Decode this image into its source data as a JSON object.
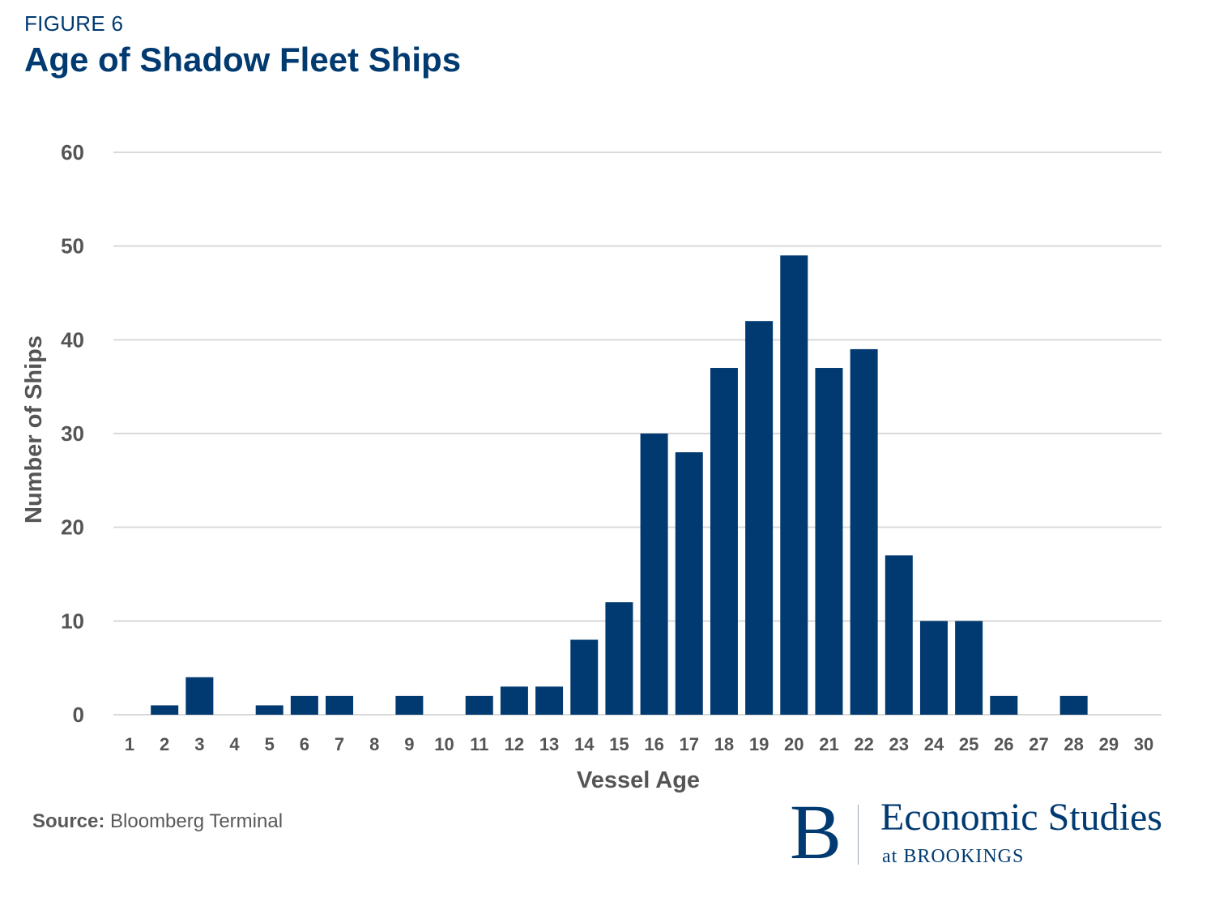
{
  "header": {
    "figure_label": "FIGURE 6",
    "title": "Age of Shadow Fleet Ships"
  },
  "chart_data": {
    "type": "bar",
    "title": "Age of Shadow Fleet Ships",
    "xlabel": "Vessel Age",
    "ylabel": "Number of Ships",
    "categories": [
      "1",
      "2",
      "3",
      "4",
      "5",
      "6",
      "7",
      "8",
      "9",
      "10",
      "11",
      "12",
      "13",
      "14",
      "15",
      "16",
      "17",
      "18",
      "19",
      "20",
      "21",
      "22",
      "23",
      "24",
      "25",
      "26",
      "27",
      "28",
      "29",
      "30"
    ],
    "values": [
      0,
      1,
      4,
      0,
      1,
      2,
      2,
      0,
      2,
      0,
      2,
      3,
      3,
      8,
      12,
      30,
      28,
      37,
      42,
      49,
      37,
      39,
      17,
      10,
      10,
      2,
      0,
      2,
      0,
      0
    ],
    "ylim": [
      0,
      60
    ],
    "yticks": [
      0,
      10,
      20,
      30,
      40,
      50,
      60
    ],
    "grid": true,
    "bar_color": "#003a70",
    "grid_color": "#d9d9d9"
  },
  "footer": {
    "source_label": "Source:",
    "source_text": "Bloomberg Terminal"
  },
  "logo": {
    "mark": "B",
    "name": "Economic Studies",
    "subtitle": "at BROOKINGS"
  }
}
